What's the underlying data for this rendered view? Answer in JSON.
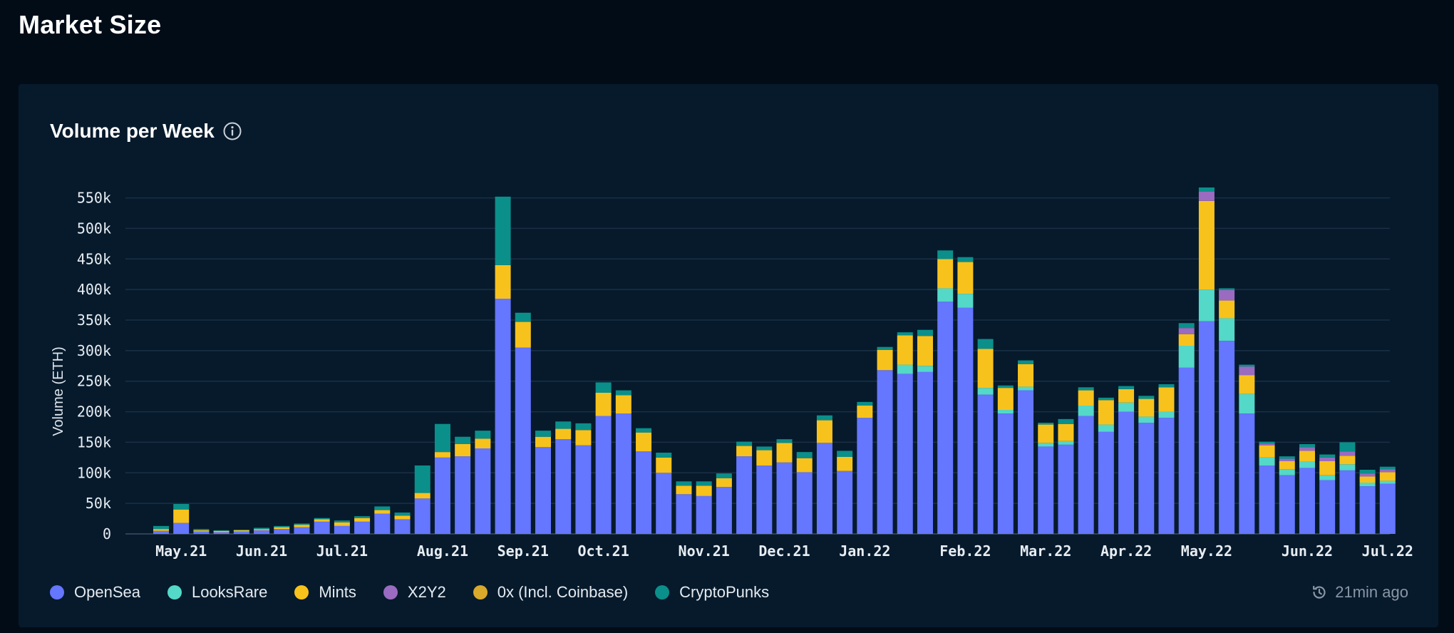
{
  "page": {
    "title": "Market Size"
  },
  "card": {
    "title": "Volume per Week",
    "info_icon": "info-icon"
  },
  "updated": {
    "icon": "clock-history-icon",
    "text": "21min ago"
  },
  "colors": {
    "background": "#020c17",
    "card": "#061a2c",
    "grid": "#1b3045",
    "OpenSea": "#6576ff",
    "LooksRare": "#54d8c8",
    "Mints": "#f8c21c",
    "X2Y2": "#9a6bc0",
    "0x (Incl. Coinbase)": "#d9a92b",
    "CryptoPunks": "#0b8f8a"
  },
  "chart_data": {
    "type": "bar",
    "stacked": true,
    "title": "Volume per Week",
    "ylabel": "Volume (ETH)",
    "xlabel": "",
    "ylim": [
      0,
      560000
    ],
    "yticks": [
      0,
      50000,
      100000,
      150000,
      200000,
      250000,
      300000,
      350000,
      400000,
      450000,
      500000,
      550000
    ],
    "ytick_labels": [
      "0",
      "50k",
      "100k",
      "150k",
      "200k",
      "250k",
      "300k",
      "350k",
      "400k",
      "450k",
      "500k",
      "550k"
    ],
    "xtick_labels": [
      {
        "label": "May.21",
        "week": 1
      },
      {
        "label": "Jun.21",
        "week": 5
      },
      {
        "label": "Jul.21",
        "week": 9
      },
      {
        "label": "Aug.21",
        "week": 14
      },
      {
        "label": "Sep.21",
        "week": 18
      },
      {
        "label": "Oct.21",
        "week": 22
      },
      {
        "label": "Nov.21",
        "week": 27
      },
      {
        "label": "Dec.21",
        "week": 31
      },
      {
        "label": "Jan.22",
        "week": 35
      },
      {
        "label": "Feb.22",
        "week": 40
      },
      {
        "label": "Mar.22",
        "week": 44
      },
      {
        "label": "Apr.22",
        "week": 48
      },
      {
        "label": "May.22",
        "week": 52
      },
      {
        "label": "Jun.22",
        "week": 57
      },
      {
        "label": "Jul.22",
        "week": 61
      }
    ],
    "legend_position": "bottom-left",
    "grid": true,
    "series": [
      {
        "name": "OpenSea",
        "values": [
          5000,
          18000,
          4000,
          3000,
          4000,
          6000,
          8000,
          11000,
          20000,
          13000,
          20000,
          33000,
          24000,
          58000,
          125000,
          127000,
          140000,
          385000,
          305000,
          142000,
          155000,
          145000,
          193000,
          197000,
          135000,
          100000,
          65000,
          62000,
          77000,
          127000,
          112000,
          117000,
          101000,
          149000,
          103000,
          190000,
          268000,
          262000,
          265000,
          380000,
          370000,
          228000,
          197000,
          235000,
          143000,
          146000,
          193000,
          167000,
          200000,
          182000,
          190000,
          272000,
          348000,
          316000,
          197000,
          112000,
          96000,
          108000,
          88000,
          104000,
          78000,
          82000
        ]
      },
      {
        "name": "LooksRare",
        "values": [
          0,
          0,
          0,
          0,
          0,
          0,
          0,
          0,
          0,
          0,
          0,
          0,
          0,
          0,
          0,
          0,
          0,
          0,
          0,
          0,
          0,
          0,
          0,
          0,
          0,
          0,
          0,
          0,
          0,
          0,
          0,
          0,
          0,
          0,
          0,
          0,
          0,
          15000,
          10000,
          22000,
          23000,
          11000,
          6000,
          6000,
          6000,
          6000,
          17000,
          12000,
          15000,
          10000,
          10000,
          36000,
          52000,
          37000,
          32000,
          13000,
          10000,
          10000,
          8000,
          10000,
          6000,
          5000
        ]
      },
      {
        "name": "Mints",
        "values": [
          3000,
          22000,
          2000,
          2000,
          2000,
          2000,
          3000,
          4000,
          4000,
          6000,
          6000,
          6000,
          6000,
          9000,
          9000,
          20000,
          16000,
          55000,
          42000,
          17000,
          17000,
          25000,
          38000,
          30000,
          31000,
          25000,
          14000,
          17000,
          14000,
          17000,
          25000,
          32000,
          23000,
          37000,
          23000,
          20000,
          33000,
          48000,
          49000,
          48000,
          52000,
          64000,
          36000,
          37000,
          30000,
          28000,
          25000,
          40000,
          22000,
          29000,
          40000,
          19000,
          145000,
          29000,
          31000,
          20000,
          13000,
          18000,
          23000,
          14000,
          10000,
          14000
        ]
      },
      {
        "name": "X2Y2",
        "values": [
          0,
          0,
          0,
          0,
          0,
          0,
          0,
          0,
          0,
          0,
          0,
          0,
          0,
          0,
          0,
          0,
          0,
          0,
          0,
          0,
          0,
          0,
          0,
          0,
          0,
          0,
          0,
          0,
          0,
          0,
          0,
          0,
          0,
          0,
          0,
          0,
          0,
          0,
          0,
          0,
          0,
          0,
          0,
          0,
          0,
          0,
          0,
          0,
          0,
          0,
          0,
          10000,
          15000,
          17000,
          14000,
          3000,
          4000,
          6000,
          6000,
          7000,
          5000,
          5000
        ]
      },
      {
        "name": "0x (Incl. Coinbase)",
        "values": [
          0,
          0,
          0,
          0,
          0,
          0,
          0,
          0,
          0,
          0,
          0,
          0,
          0,
          0,
          0,
          0,
          0,
          0,
          0,
          0,
          0,
          0,
          0,
          0,
          0,
          0,
          0,
          0,
          0,
          0,
          0,
          0,
          0,
          0,
          0,
          0,
          0,
          0,
          0,
          0,
          0,
          0,
          0,
          0,
          0,
          0,
          0,
          0,
          0,
          0,
          0,
          0,
          0,
          0,
          0,
          0,
          0,
          0,
          0,
          0,
          0,
          0
        ]
      },
      {
        "name": "CryptoPunks",
        "values": [
          5000,
          9000,
          2000,
          1000,
          1000,
          2000,
          2000,
          2000,
          2000,
          3000,
          3000,
          6000,
          5000,
          45000,
          46000,
          12000,
          13000,
          112000,
          15000,
          10000,
          12000,
          11000,
          17000,
          8000,
          7000,
          8000,
          7000,
          7000,
          8000,
          7000,
          6000,
          6000,
          10000,
          8000,
          10000,
          6000,
          5000,
          5000,
          10000,
          14000,
          8000,
          16000,
          4000,
          6000,
          3000,
          8000,
          5000,
          4000,
          5000,
          5000,
          5000,
          8000,
          7000,
          3000,
          3000,
          3000,
          4000,
          5000,
          5000,
          15000,
          6000,
          4000
        ]
      }
    ]
  }
}
